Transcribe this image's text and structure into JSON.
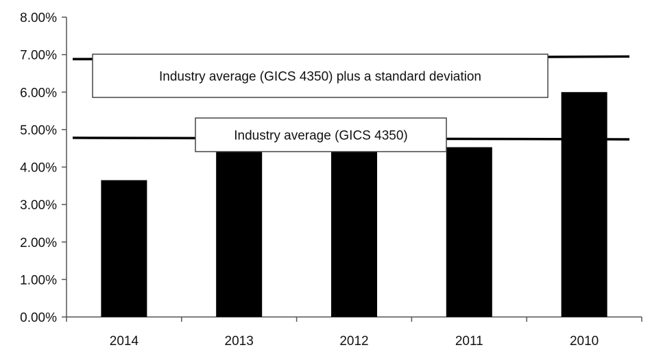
{
  "chart_data": {
    "type": "bar",
    "title": "",
    "xlabel": "",
    "ylabel": "",
    "categories": [
      "2014",
      "2013",
      "2012",
      "2011",
      "2010"
    ],
    "values": [
      3.65,
      4.45,
      4.45,
      4.53,
      6.0
    ],
    "ylim": [
      0,
      8
    ],
    "yticks": [
      "0.00%",
      "1.00%",
      "2.00%",
      "3.00%",
      "4.00%",
      "5.00%",
      "6.00%",
      "7.00%",
      "8.00%"
    ],
    "grid": false,
    "bar_color": "#000000",
    "reference_lines": [
      {
        "label": "Industry average (GICS 4350) plus a standard deviation",
        "from": 6.88,
        "to": 6.95
      },
      {
        "label": "Industry average (GICS 4350)",
        "from": 4.78,
        "to": 4.74
      }
    ]
  }
}
